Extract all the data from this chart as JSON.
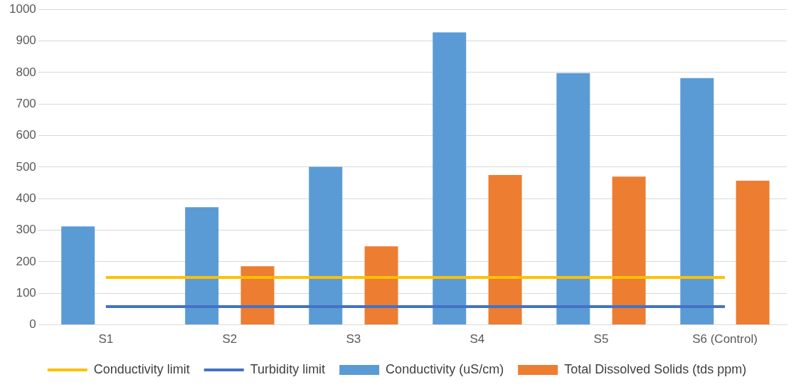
{
  "chart_data": {
    "type": "bar",
    "categories": [
      "S1",
      "S2",
      "S3",
      "S4",
      "S5",
      "S6 (Control)"
    ],
    "series": [
      {
        "name": "Conductivity (uS/cm)",
        "color": "#5b9bd5",
        "values": [
          312,
          373,
          501,
          927,
          798,
          782
        ]
      },
      {
        "name": "Total Dissolved Solids (tds ppm)",
        "color": "#ed7d31",
        "values": [
          null,
          186,
          249,
          475,
          470,
          457
        ]
      },
      {
        "name": "Conductivity limit",
        "color": "#ffc000",
        "type": "line",
        "values": [
          150,
          150,
          150,
          150,
          150,
          150
        ]
      },
      {
        "name": "Turbidity limit",
        "color": "#4472c4",
        "type": "line",
        "values": [
          58,
          58,
          58,
          58,
          58,
          58
        ]
      }
    ],
    "ylim": [
      0,
      1000
    ],
    "yticks": [
      0,
      100,
      200,
      300,
      400,
      500,
      600,
      700,
      800,
      900,
      1000
    ],
    "grid": "y",
    "legend": "bottom",
    "marker": "none",
    "line_style": "solid"
  }
}
